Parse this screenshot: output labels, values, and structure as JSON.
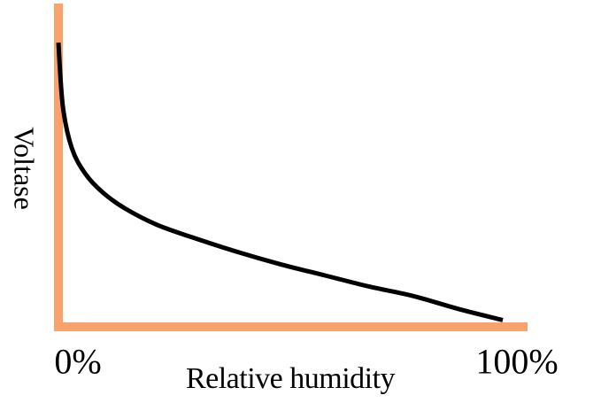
{
  "chart_data": {
    "type": "line",
    "title": "",
    "xlabel": "Relative humidity",
    "ylabel": "Voltase",
    "xlim": [
      0,
      100
    ],
    "ylim": [
      0,
      1
    ],
    "x_tick_labels": [
      "0%",
      "100%"
    ],
    "grid": false,
    "legend": "none",
    "axis_color": "#F9A26C",
    "line_color": "#000000",
    "series": [
      {
        "x": [
          0,
          1,
          3,
          6,
          10,
          15,
          22,
          30,
          40,
          50,
          60,
          70,
          80,
          90,
          100
        ],
        "values": [
          0.88,
          0.68,
          0.55,
          0.47,
          0.41,
          0.36,
          0.31,
          0.27,
          0.225,
          0.185,
          0.15,
          0.115,
          0.085,
          0.045,
          0.01
        ]
      }
    ]
  }
}
